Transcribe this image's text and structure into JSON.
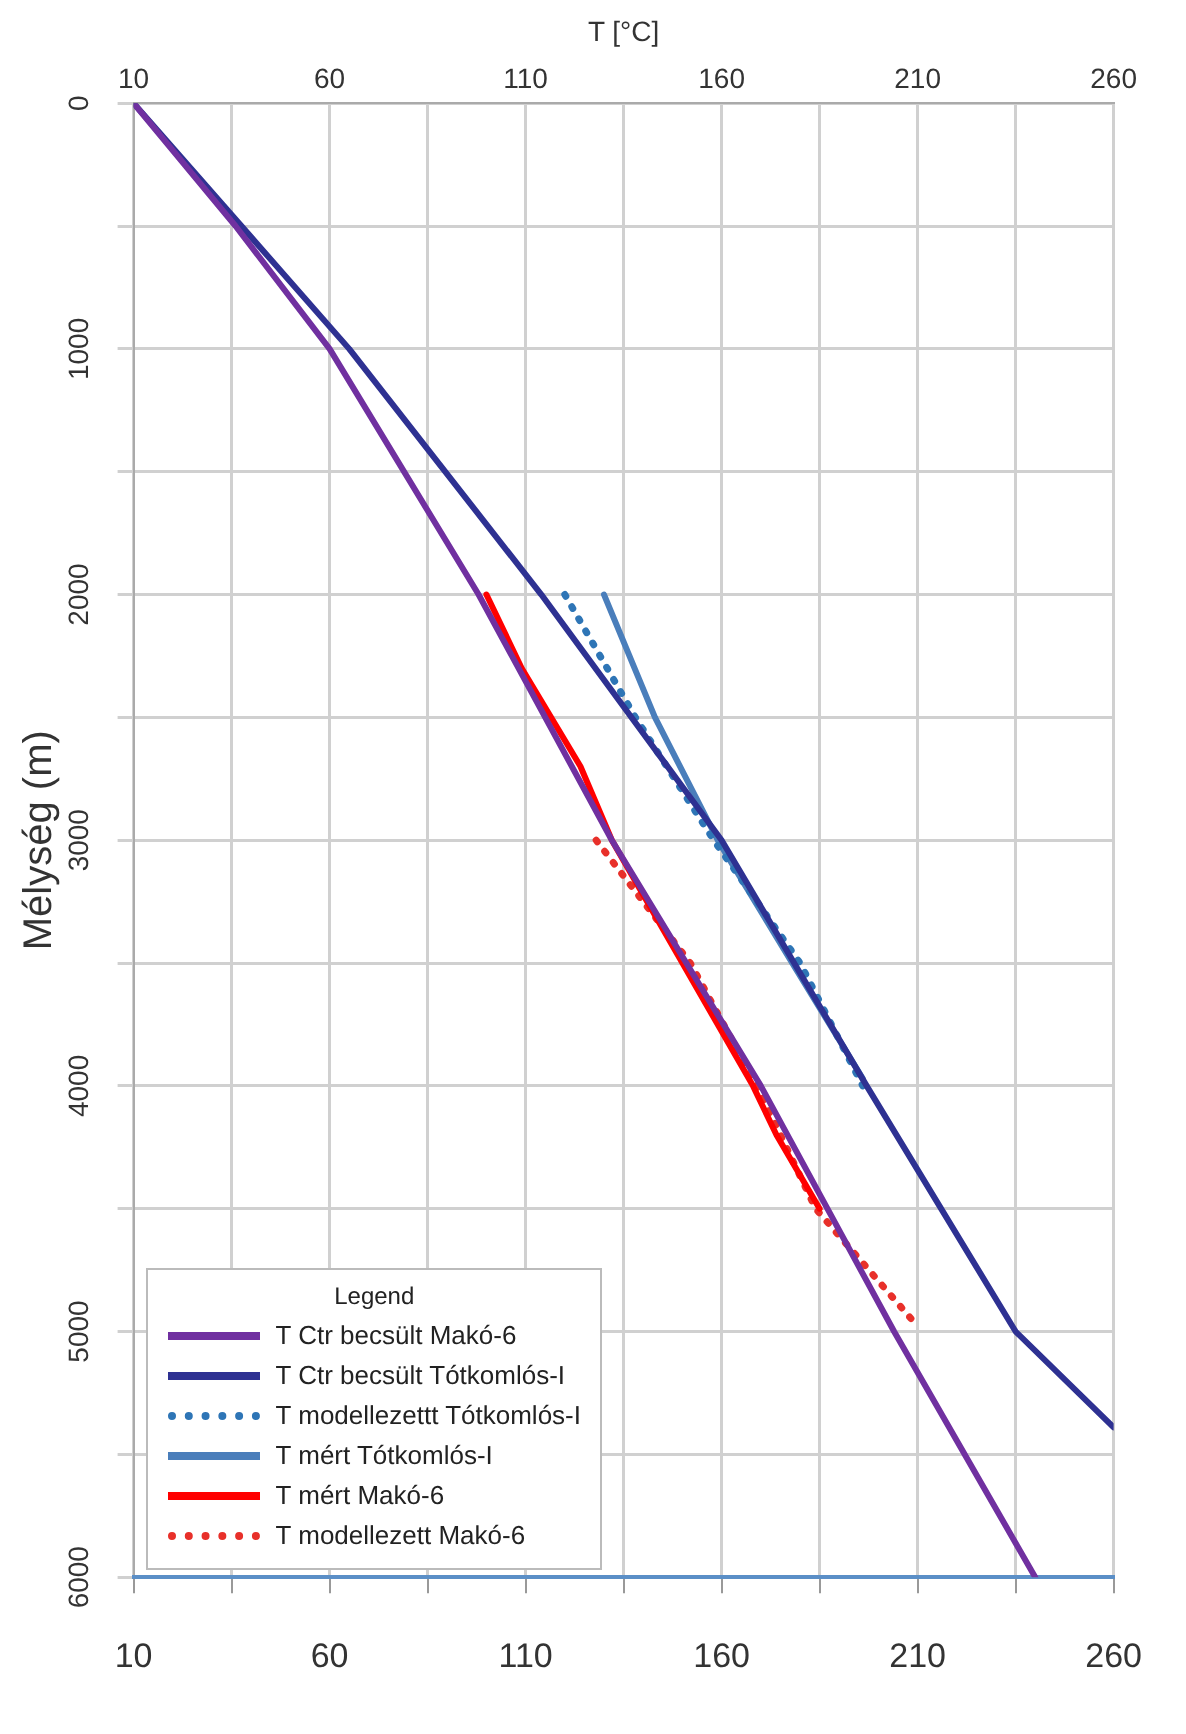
{
  "chart_data": {
    "type": "line",
    "xlabel": "T [°C]",
    "ylabel": "Mélység (m)",
    "legend_title": "Legend",
    "legend": "bottom left",
    "grid": true,
    "marker": "none",
    "xlim": [
      10,
      260
    ],
    "xticks": [
      10,
      {
        "value": 35,
        "label": null
      },
      60,
      {
        "value": 85,
        "label": null
      },
      110,
      {
        "value": 135,
        "label": null
      },
      160,
      {
        "value": 185,
        "label": null
      },
      210,
      {
        "value": 235,
        "label": null
      },
      260
    ],
    "x2lim": [
      10,
      260
    ],
    "x2ticks": [
      10,
      {
        "value": 35,
        "label": null
      },
      60,
      {
        "value": 85,
        "label": null
      },
      110,
      {
        "value": 135,
        "label": null
      },
      160,
      {
        "value": 185,
        "label": null
      },
      210,
      {
        "value": 235,
        "label": null
      },
      260
    ],
    "ylim": [
      6000,
      0
    ],
    "yticks": [
      0,
      {
        "value": 500,
        "label": null
      },
      1000,
      {
        "value": 1500,
        "label": null
      },
      2000,
      {
        "value": 2500,
        "label": null
      },
      3000,
      {
        "value": 3500,
        "label": null
      },
      4000,
      {
        "value": 4500,
        "label": null
      },
      5000,
      {
        "value": 5500,
        "label": null
      },
      6000
    ],
    "series": [
      {
        "name": "T Ctr becsült Makó-6",
        "color": "#7030a0",
        "line_style": "solid",
        "x": [
          10,
          36,
          60,
          98,
          132,
          170,
          204,
          240
        ],
        "values": [
          0,
          500,
          1000,
          2000,
          3000,
          4000,
          5000,
          6000
        ]
      },
      {
        "name": "T Ctr becsült Tótkomlós-I",
        "color": "#2e3192",
        "line_style": "solid",
        "x": [
          10,
          65,
          114,
          160,
          197,
          235,
          260
        ],
        "values": [
          0,
          1000,
          2000,
          3000,
          4000,
          5000,
          5390
        ]
      },
      {
        "name": "T modellezettt Tótkomlós-I",
        "color": "#2e75b6",
        "line_style": "dotted",
        "x": [
          120,
          138,
          158,
          180,
          196
        ],
        "values": [
          2000,
          2500,
          3000,
          3500,
          4000
        ]
      },
      {
        "name": "T mért Tótkomlós-I",
        "color": "#4a7ebb",
        "line_style": "solid",
        "x": [
          130,
          143,
          159,
          178,
          196
        ],
        "values": [
          2000,
          2500,
          3000,
          3500,
          3970
        ]
      },
      {
        "name": "T mért Makó-6",
        "color": "#ff0000",
        "line_style": "solid",
        "x": [
          100,
          109,
          124,
          132,
          150,
          168,
          174,
          185
        ],
        "values": [
          2000,
          2300,
          2700,
          3000,
          3500,
          4000,
          4200,
          4500
        ]
      },
      {
        "name": "T modellezett Makó-6",
        "color": "#e8302a",
        "line_style": "dotted",
        "x": [
          128,
          152,
          169,
          184,
          209
        ],
        "values": [
          3000,
          3500,
          4000,
          4500,
          4960
        ]
      }
    ]
  }
}
